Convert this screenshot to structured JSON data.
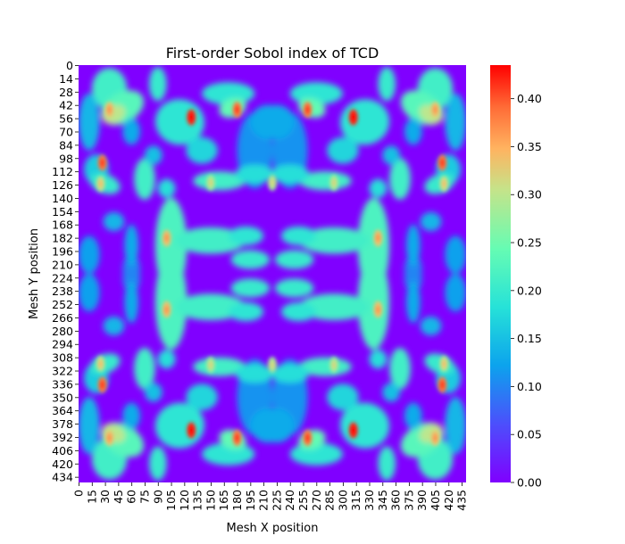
{
  "chart_data": {
    "type": "heatmap",
    "title": "First-order Sobol index of TCD",
    "xlabel": "Mesh X position",
    "ylabel": "Mesh Y position",
    "x_ticks": [
      0,
      15,
      30,
      45,
      60,
      75,
      90,
      105,
      120,
      135,
      150,
      165,
      180,
      195,
      210,
      225,
      240,
      255,
      270,
      285,
      300,
      315,
      330,
      345,
      360,
      375,
      390,
      405,
      420,
      435
    ],
    "y_ticks": [
      0,
      14,
      28,
      42,
      56,
      70,
      84,
      98,
      112,
      126,
      140,
      154,
      168,
      182,
      196,
      210,
      224,
      238,
      252,
      266,
      280,
      294,
      308,
      322,
      336,
      350,
      364,
      378,
      392,
      406,
      420,
      434
    ],
    "x_range": [
      0,
      440
    ],
    "y_range": [
      0,
      440
    ],
    "symmetry": "mirror about x=220 and y=220",
    "colormap": "rainbow",
    "colorbar": {
      "min": 0.0,
      "max": 0.435,
      "ticks": [
        "0.00",
        "0.05",
        "0.10",
        "0.15",
        "0.20",
        "0.25",
        "0.30",
        "0.35",
        "0.40"
      ]
    },
    "hotspots": [
      {
        "x": 128,
        "y": 55,
        "value": 0.42
      },
      {
        "x": 35,
        "y": 47,
        "value": 0.33
      },
      {
        "x": 180,
        "y": 47,
        "value": 0.38
      },
      {
        "x": 27,
        "y": 103,
        "value": 0.38
      },
      {
        "x": 25,
        "y": 125,
        "value": 0.3
      },
      {
        "x": 100,
        "y": 183,
        "value": 0.33
      },
      {
        "x": 100,
        "y": 258,
        "value": 0.33
      },
      {
        "x": 220,
        "y": 124,
        "value": 0.28
      },
      {
        "x": 150,
        "y": 124,
        "value": 0.28
      }
    ]
  }
}
